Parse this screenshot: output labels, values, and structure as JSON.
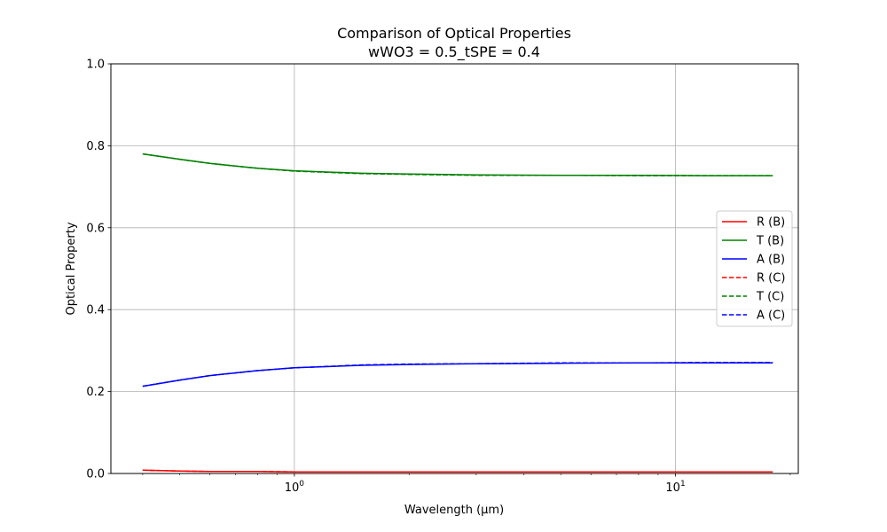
{
  "chart_data": {
    "type": "line",
    "title": "Comparison of Optical Properties",
    "subtitle": "wWO3 = 0.5_tSPE = 0.4",
    "xlabel": "Wavelength (µm)",
    "ylabel": "Optical Property",
    "xscale": "log",
    "xlim": [
      0.33,
      21
    ],
    "ylim": [
      0,
      1.0
    ],
    "x_ticks": [
      {
        "value": 1,
        "base": "10",
        "exp": "0"
      },
      {
        "value": 10,
        "base": "10",
        "exp": "1"
      }
    ],
    "y_ticks": [
      "0.0",
      "0.2",
      "0.4",
      "0.6",
      "0.8",
      "1.0"
    ],
    "grid": true,
    "legend_position": "center-right",
    "x": [
      0.4,
      0.5,
      0.6,
      0.8,
      1.0,
      1.5,
      2.0,
      3.0,
      5.0,
      8.0,
      12.0,
      18.0
    ],
    "series": [
      {
        "name": "R (B)",
        "color": "#ff0000",
        "dash": "solid",
        "values": [
          0.008,
          0.006,
          0.005,
          0.005,
          0.004,
          0.004,
          0.004,
          0.004,
          0.004,
          0.004,
          0.004,
          0.004
        ]
      },
      {
        "name": "T (B)",
        "color": "#008000",
        "dash": "solid",
        "values": [
          0.78,
          0.767,
          0.757,
          0.745,
          0.739,
          0.733,
          0.731,
          0.729,
          0.728,
          0.728,
          0.727,
          0.727
        ]
      },
      {
        "name": "A (B)",
        "color": "#0000ff",
        "dash": "solid",
        "values": [
          0.213,
          0.228,
          0.239,
          0.251,
          0.258,
          0.264,
          0.266,
          0.268,
          0.269,
          0.27,
          0.27,
          0.27
        ]
      },
      {
        "name": "R (C)",
        "color": "#ff0000",
        "dash": "dashed",
        "values": [
          0.008,
          0.006,
          0.005,
          0.005,
          0.004,
          0.004,
          0.004,
          0.004,
          0.004,
          0.004,
          0.004,
          0.004
        ]
      },
      {
        "name": "T (C)",
        "color": "#008000",
        "dash": "dashed",
        "values": [
          0.78,
          0.767,
          0.757,
          0.745,
          0.738,
          0.732,
          0.73,
          0.728,
          0.728,
          0.727,
          0.727,
          0.727
        ]
      },
      {
        "name": "A (C)",
        "color": "#0000ff",
        "dash": "dashed",
        "values": [
          0.213,
          0.228,
          0.239,
          0.251,
          0.258,
          0.265,
          0.267,
          0.268,
          0.27,
          0.27,
          0.271,
          0.271
        ]
      }
    ]
  }
}
